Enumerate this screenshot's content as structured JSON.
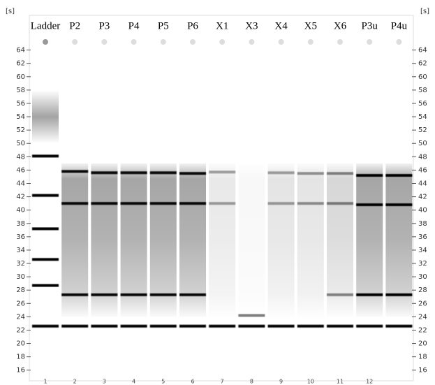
{
  "chart_data": {
    "type": "gel",
    "unit_left": "[s]",
    "unit_right": "[s]",
    "categories": [
      "Ladder",
      "P2",
      "P3",
      "P4",
      "P5",
      "P6",
      "X1",
      "X3",
      "X4",
      "X5",
      "X6",
      "P3u",
      "P4u"
    ],
    "lane_numbers": [
      "1",
      "2",
      "3",
      "4",
      "5",
      "6",
      "7",
      "8",
      "9",
      "10",
      "11",
      "12",
      null
    ],
    "ylim": [
      14.4,
      69.2
    ],
    "yticks": [
      16,
      18,
      20,
      22,
      24,
      26,
      28,
      30,
      32,
      34,
      36,
      38,
      40,
      42,
      44,
      46,
      48,
      50,
      52,
      54,
      56,
      58,
      60,
      62,
      64
    ],
    "bands": [
      [
        22.6,
        28.7,
        32.6,
        37.2,
        42.2,
        48.1
      ],
      [
        22.6,
        27.3,
        41.0,
        45.8
      ],
      [
        22.6,
        27.3,
        41.0,
        45.6
      ],
      [
        22.6,
        27.3,
        41.0,
        45.6
      ],
      [
        22.6,
        27.3,
        41.0,
        45.6
      ],
      [
        22.6,
        27.3,
        41.0,
        45.5
      ],
      [
        22.6,
        41.0,
        45.7
      ],
      [
        22.6,
        24.2
      ],
      [
        22.6,
        41.0,
        45.6
      ],
      [
        22.6,
        41.0,
        45.5
      ],
      [
        22.6,
        27.3,
        41.0,
        45.5
      ],
      [
        22.6,
        27.3,
        40.8,
        45.2
      ],
      [
        22.6,
        27.3,
        40.8,
        45.2
      ]
    ]
  }
}
